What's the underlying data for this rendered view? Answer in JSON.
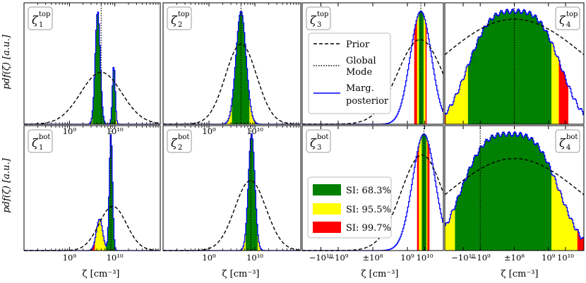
{
  "figure": {
    "ylabel": "pdf(ζ) [a.u.]",
    "xlabel": "ζ [cm⁻³]",
    "legend_lines": {
      "prior": "Prior",
      "mode_line1": "Global",
      "mode_line2": "Mode",
      "post_line1": "Marg.",
      "post_line2": "posterior"
    },
    "legend_si": [
      "SI: 68.3%",
      "SI: 95.5%",
      "SI: 99.7%"
    ],
    "colors": {
      "si68": "#008000",
      "si95": "#ffff00",
      "si99": "#ff0000",
      "posterior": "#0000ff",
      "prior": "#000000",
      "mode": "#000000"
    }
  },
  "chart_data": [
    {
      "type": "area",
      "panel": "top-1",
      "label_sym": "ζ",
      "label_sub": "1",
      "label_sup": "top",
      "xscale": "log",
      "xlim": [
        100000000.0,
        100000000000.0
      ],
      "xticks": [
        1000000000.0,
        10000000000.0
      ],
      "xticklabels": [
        "10⁹",
        "10¹⁰"
      ],
      "posterior": {
        "peaks": [
          {
            "x": 4200000000.0,
            "w": 0.055,
            "a": 1.0
          },
          {
            "x": 9500000000.0,
            "w": 0.03,
            "a": 0.52
          }
        ]
      },
      "prior": {
        "x": 5000000000.0,
        "w": 0.45,
        "a": 0.46
      },
      "mode": 5000000000.0,
      "si683": [
        3100000000.0,
        10500000000.0
      ],
      "si955": [
        2200000000.0,
        12500000000.0
      ],
      "si997": [
        1700000000.0,
        14500000000.0
      ]
    },
    {
      "type": "area",
      "panel": "top-2",
      "label_sym": "ζ",
      "label_sub": "2",
      "label_sup": "top",
      "xscale": "log",
      "xlim": [
        100000000.0,
        100000000000.0
      ],
      "xticks": [
        1000000000.0,
        10000000000.0
      ],
      "xticklabels": [
        "10⁹",
        "10¹⁰"
      ],
      "posterior": {
        "peaks": [
          {
            "x": 5000000000.0,
            "w": 0.11,
            "a": 1.0
          }
        ]
      },
      "prior": {
        "x": 5000000000.0,
        "w": 0.34,
        "a": 0.71
      },
      "mode": 5000000000.0,
      "si683": [
        3200000000.0,
        7500000000.0
      ],
      "si955": [
        1700000000.0,
        11500000000.0
      ],
      "si997": [
        1150000000.0,
        15000000000.0
      ]
    },
    {
      "type": "area",
      "panel": "top-3",
      "label_sym": "ζ",
      "label_sub": "3",
      "label_sup": "top",
      "xscale": "symlog",
      "xlim": [
        -120000000000.0,
        120000000000.0
      ],
      "xticks": [
        -10000000000.0,
        -1000000000.0,
        0,
        1000000000.0,
        10000000000.0
      ],
      "xticklabels": [],
      "posterior": {
        "peaks": [
          {
            "x": 6000000000.0,
            "w": 0.075,
            "a": 1.0
          }
        ]
      },
      "prior": {
        "x": 5500000000.0,
        "w": 0.16,
        "a": 0.75
      },
      "mode": 6000000000.0,
      "si683": [
        4400000000.0,
        8500000000.0
      ],
      "si955": [
        3400000000.0,
        10500000000.0
      ],
      "si997": [
        2600000000.0,
        13000000000.0
      ]
    },
    {
      "type": "area",
      "panel": "top-4",
      "label_sym": "ζ",
      "label_sub": "4",
      "label_sup": "top",
      "xscale": "symlog",
      "xlim": [
        -120000000000.0,
        120000000000.0
      ],
      "xticks": [
        -10000000000.0,
        -1000000000.0,
        0,
        1000000000.0,
        10000000000.0
      ],
      "xticklabels": [],
      "posterior": {
        "broad": true,
        "center": 0,
        "w": 0.34,
        "a": 1.0
      },
      "prior": {
        "center": 0,
        "w": 0.55,
        "a": 0.93
      },
      "mode": 0,
      "si683": [
        -5000000000.0,
        1500000000.0
      ],
      "si955": [
        -100000000000.0,
        4000000000.0
      ],
      "si997": [
        -120000000000.0,
        15000000000.0
      ]
    },
    {
      "type": "area",
      "panel": "bot-1",
      "label_sym": "ζ",
      "label_sub": "1",
      "label_sup": "bot",
      "xscale": "log",
      "xlim": [
        100000000.0,
        100000000000.0
      ],
      "xticks": [
        1000000000.0,
        10000000000.0
      ],
      "xticklabels": [
        "10⁹",
        "10¹⁰"
      ],
      "posterior": {
        "peaks": [
          {
            "x": 8200000000.0,
            "w": 0.035,
            "a": 1.0
          },
          {
            "x": 4600000000.0,
            "w": 0.07,
            "a": 0.27
          }
        ]
      },
      "prior": {
        "x": 9000000000.0,
        "w": 0.3,
        "a": 0.38
      },
      "mode": 8200000000.0,
      "si683": [
        6300000000.0,
        10000000000.0
      ],
      "si955": [
        3600000000.0,
        11500000000.0
      ],
      "si997": [
        2600000000.0,
        13000000000.0
      ]
    },
    {
      "type": "area",
      "panel": "bot-2",
      "label_sym": "ζ",
      "label_sub": "2",
      "label_sup": "bot",
      "xscale": "log",
      "xlim": [
        100000000.0,
        100000000000.0
      ],
      "xticks": [
        1000000000.0,
        10000000000.0
      ],
      "xticklabels": [
        "10⁹",
        "10¹⁰"
      ],
      "posterior": {
        "peaks": [
          {
            "x": 8500000000.0,
            "w": 0.07,
            "a": 1.0
          }
        ]
      },
      "prior": {
        "x": 8000000000.0,
        "w": 0.34,
        "a": 0.6
      },
      "mode": 8200000000.0,
      "si683": [
        6300000000.0,
        11500000000.0
      ],
      "si955": [
        4000000000.0,
        15000000000.0
      ],
      "si997": [
        3000000000.0,
        19000000000.0
      ]
    },
    {
      "type": "area",
      "panel": "bot-3",
      "label_sym": "ζ",
      "label_sub": "3",
      "label_sup": "bot",
      "xscale": "symlog",
      "xlim": [
        -120000000000.0,
        120000000000.0
      ],
      "xticks": [
        -10000000000.0,
        -1000000000.0,
        0,
        1000000000.0,
        10000000000.0
      ],
      "xticklabels": [
        "−10¹⁰",
        "−10⁹",
        "±10⁸",
        "10⁹",
        "10¹⁰"
      ],
      "posterior": {
        "peaks": [
          {
            "x": 9000000000.0,
            "w": 0.08,
            "a": 1.0
          }
        ]
      },
      "prior": {
        "x": 7000000000.0,
        "w": 0.15,
        "a": 0.82
      },
      "mode": 9000000000.0,
      "si683": [
        6500000000.0,
        12000000000.0
      ],
      "si955": [
        4800000000.0,
        14500000000.0
      ],
      "si997": [
        3800000000.0,
        17500000000.0
      ]
    },
    {
      "type": "area",
      "panel": "bot-4",
      "label_sym": "ζ",
      "label_sub": "4",
      "label_sup": "bot",
      "xscale": "symlog",
      "xlim": [
        -120000000000.0,
        120000000000.0
      ],
      "xticks": [
        -10000000000.0,
        -1000000000.0,
        0,
        1000000000.0,
        10000000000.0
      ],
      "xticklabels": [
        "−10¹⁰",
        "−10⁹",
        "±10⁸",
        "10⁹",
        "10¹⁰"
      ],
      "posterior": {
        "broad": true,
        "center": -0.25,
        "w": 0.36,
        "a": 1.0
      },
      "prior": {
        "center": 0,
        "w": 0.5,
        "a": 0.79
      },
      "mode": -1000000000.0,
      "si683": [
        -30000000000.0,
        1500000000.0
      ],
      "si955": [
        -120000000000.0,
        50000000000.0
      ],
      "si997": [
        -120000000000.0,
        120000000000.0
      ]
    }
  ]
}
